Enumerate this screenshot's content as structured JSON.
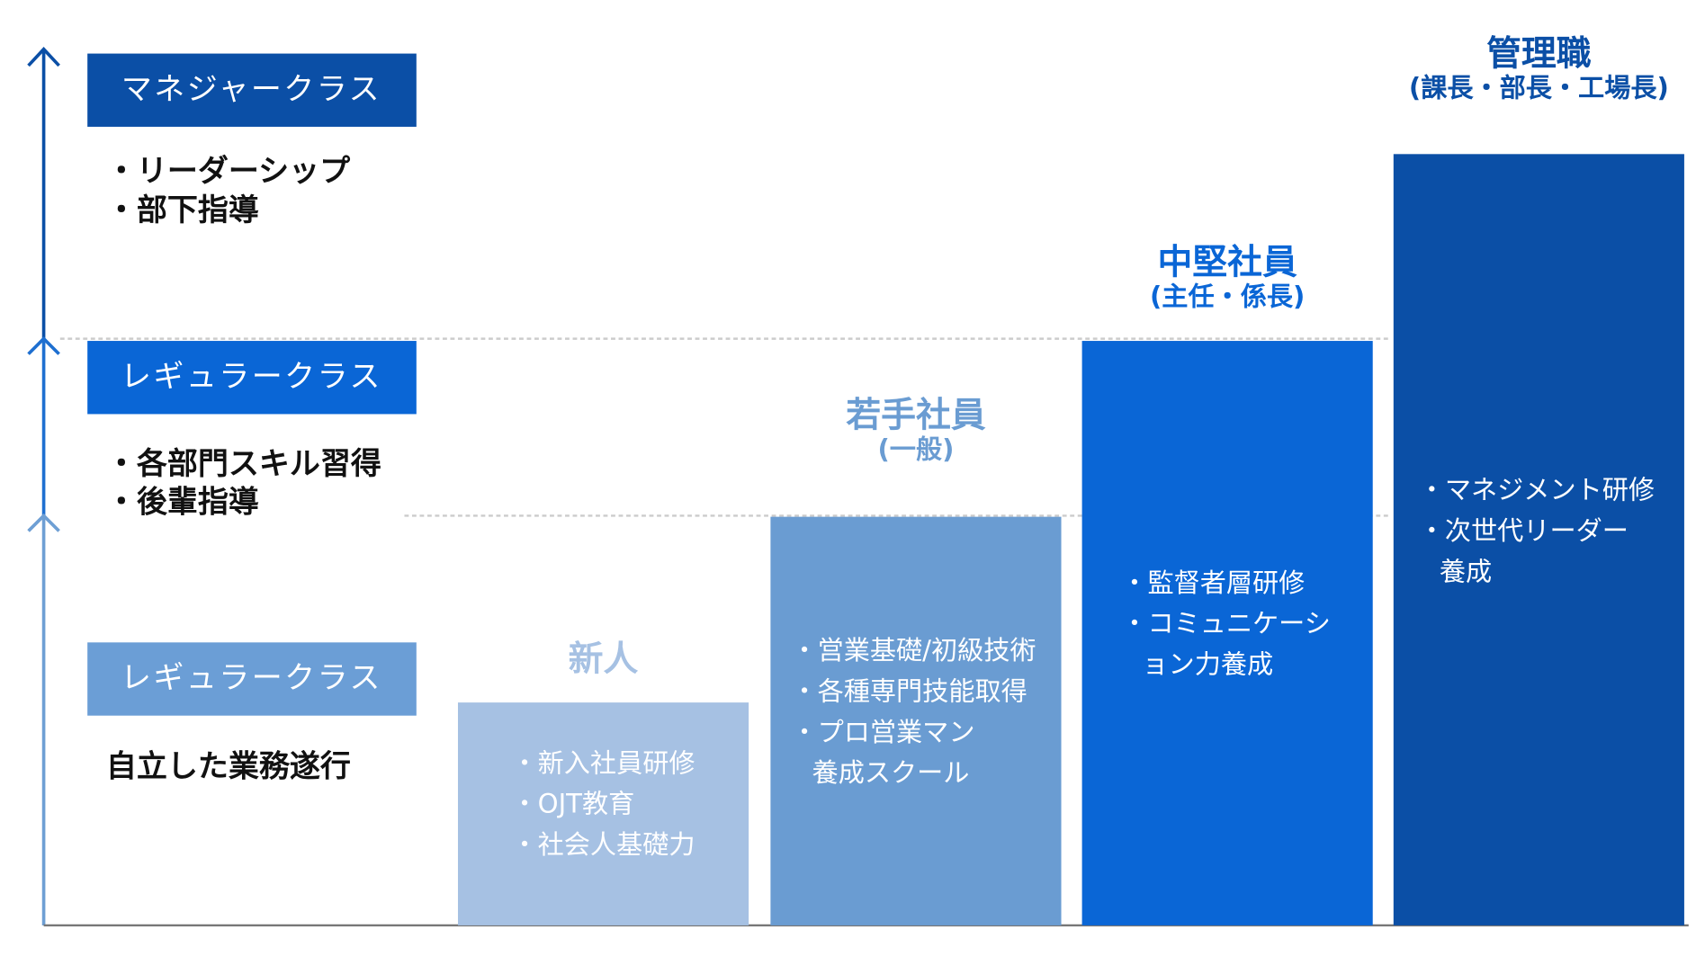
{
  "levels": [
    {
      "label": "マネジャークラス",
      "items": [
        [
          "・リーダーシップ"
        ],
        [
          "・部下指導"
        ]
      ]
    },
    {
      "label": "レギュラークラス",
      "items": [
        [
          "・各部門スキル習得"
        ],
        [
          "・後輩指導"
        ]
      ]
    },
    {
      "label": "レギュラークラス",
      "items": [
        [
          "自立した業務遂行"
        ]
      ]
    }
  ],
  "steps": [
    {
      "title": "新人",
      "items": [
        [
          "・新入社員研修"
        ],
        [
          "・OJT教育"
        ],
        [
          "・社会人基礎力"
        ]
      ]
    },
    {
      "title": "若手社員",
      "subtitle": "(一般)",
      "items": [
        [
          "・営業基礎/初級技術"
        ],
        [
          "・各種専門技能取得"
        ],
        [
          "・プロ営業マン",
          "養成スクール"
        ]
      ]
    },
    {
      "title": "中堅社員",
      "subtitle": "(主任・係長)",
      "items": [
        [
          "・監督者層研修"
        ],
        [
          "・コミュニケーシ",
          "ョン力養成"
        ]
      ]
    },
    {
      "title": "管理職",
      "subtitle": "(課長・部長・工場長)",
      "items": [
        [
          "・マネジメント研修"
        ],
        [
          "・次世代リーダー",
          "養成"
        ]
      ]
    }
  ]
}
